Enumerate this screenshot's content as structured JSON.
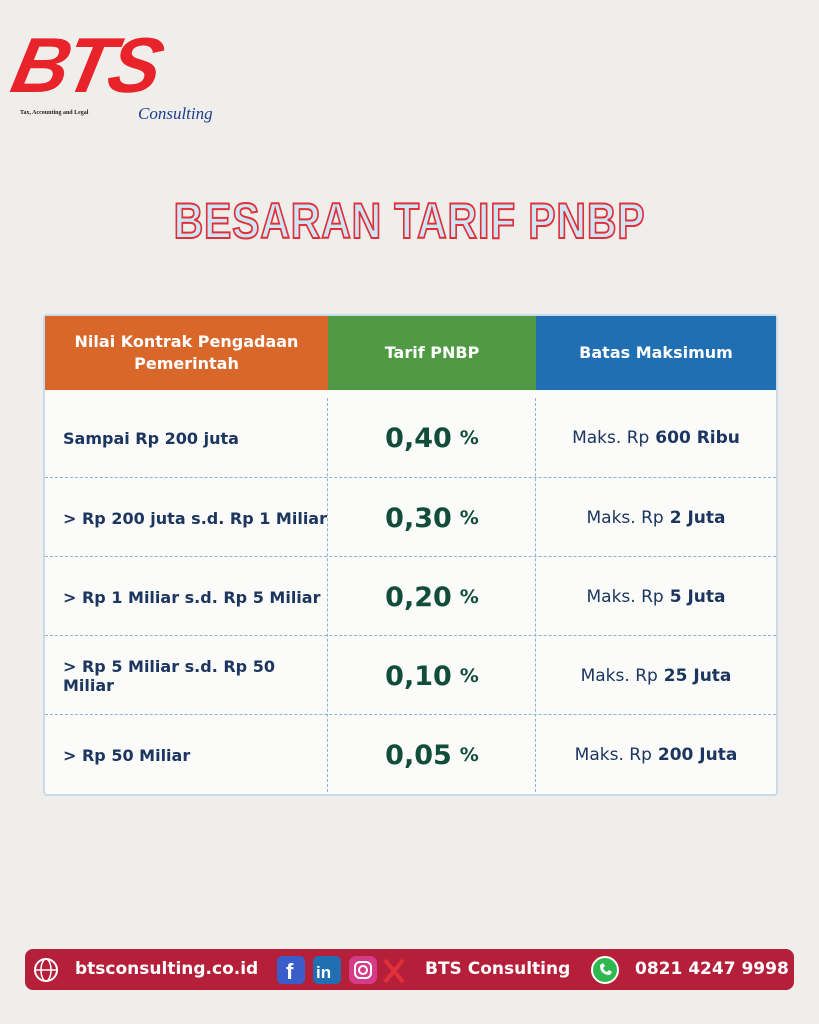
{
  "logo": {
    "mark": "BTS",
    "name": "Consulting",
    "tagline": "Tax, Accounting and Legal"
  },
  "title": "BESARAN TARIF PNBP",
  "table": {
    "headers": [
      "Nilai Kontrak Pengadaan Pemerintah",
      "Tarif PNBP",
      "Batas Maksimum"
    ],
    "rows": [
      {
        "range": "Sampai Rp 200 juta",
        "rate": "0,40",
        "rate_unit": "%",
        "max_prefix": "Maks. Rp",
        "max_amount": "600 Ribu"
      },
      {
        "range": "> Rp 200 juta s.d. Rp 1 Miliar",
        "rate": "0,30",
        "rate_unit": "%",
        "max_prefix": "Maks. Rp",
        "max_amount": "2 Juta"
      },
      {
        "range": "> Rp 1 Miliar s.d. Rp 5 Miliar",
        "rate": "0,20",
        "rate_unit": "%",
        "max_prefix": "Maks. Rp",
        "max_amount": "5 Juta"
      },
      {
        "range": "> Rp 5 Miliar s.d. Rp 50 Miliar",
        "rate": "0,10",
        "rate_unit": "%",
        "max_prefix": "Maks. Rp",
        "max_amount": "25 Juta"
      },
      {
        "range": "> Rp 50 Miliar",
        "rate": "0,05",
        "rate_unit": "%",
        "max_prefix": "Maks. Rp",
        "max_amount": "200 Juta"
      }
    ]
  },
  "footer": {
    "website": "btsconsulting.co.id",
    "social_name": "BTS Consulting",
    "phone": "0821 4247 9998"
  }
}
